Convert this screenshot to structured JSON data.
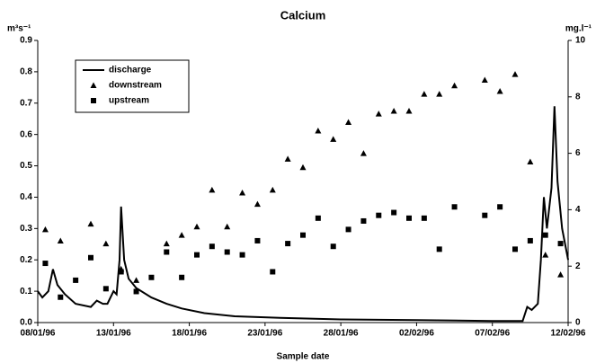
{
  "chart_data": {
    "type": "line_scatter",
    "title": "Calcium",
    "ylabel": "m³s⁻¹",
    "y2label": "mg.l⁻¹",
    "xlabel": "Sample date",
    "xlim": [
      0,
      35
    ],
    "xticks": [
      {
        "value": 0,
        "label": "08/01/96"
      },
      {
        "value": 5,
        "label": "13/01/96"
      },
      {
        "value": 10,
        "label": "18/01/96"
      },
      {
        "value": 15,
        "label": "23/01/96"
      },
      {
        "value": 20,
        "label": "28/01/96"
      },
      {
        "value": 25,
        "label": "02/02/96"
      },
      {
        "value": 30,
        "label": "07/02/96"
      },
      {
        "value": 35,
        "label": "12/02/96"
      }
    ],
    "ylim": [
      0,
      0.9
    ],
    "yticks": [
      {
        "value": 0,
        "label": "0.0"
      },
      0.1,
      0.2,
      0.3,
      0.4,
      0.5,
      0.6,
      0.7,
      0.8,
      0.9
    ],
    "y2lim": [
      0,
      10
    ],
    "y2ticks": [
      0,
      2,
      4,
      6,
      8,
      10
    ],
    "series": [
      {
        "name": "discharge",
        "color": "#000000",
        "marker": "line",
        "x": [
          0,
          0.3,
          0.7,
          1,
          1.3,
          1.8,
          2.5,
          3.5,
          3.9,
          4.3,
          4.6,
          5,
          5.2,
          5.4,
          5.5,
          5.7,
          6,
          6.5,
          7.5,
          8.5,
          9.5,
          11,
          13,
          16,
          20,
          25,
          30,
          32,
          32.3,
          32.6,
          33,
          33.2,
          33.4,
          33.6,
          33.9,
          34.1,
          34.3,
          34.6,
          35
        ],
        "values": [
          0.1,
          0.08,
          0.1,
          0.17,
          0.12,
          0.09,
          0.06,
          0.05,
          0.07,
          0.06,
          0.06,
          0.1,
          0.09,
          0.2,
          0.37,
          0.2,
          0.14,
          0.11,
          0.08,
          0.06,
          0.045,
          0.03,
          0.02,
          0.015,
          0.01,
          0.008,
          0.005,
          0.005,
          0.05,
          0.04,
          0.06,
          0.2,
          0.4,
          0.3,
          0.43,
          0.69,
          0.45,
          0.3,
          0.2
        ]
      },
      {
        "name": "downstream",
        "color": "#000000",
        "marker": "triangle",
        "axis": "y2",
        "x": [
          0.5,
          1.5,
          3.5,
          4.5,
          5.5,
          6.5,
          8.5,
          9.5,
          10.5,
          11.5,
          12.5,
          13.5,
          14.5,
          15.5,
          16.5,
          17.5,
          18.5,
          19.5,
          20.5,
          21.5,
          22.5,
          23.5,
          24.5,
          25.5,
          26.5,
          27.5,
          29.5,
          30.5,
          31.5,
          32.5,
          33.5,
          34.5
        ],
        "values": [
          3.3,
          2.9,
          3.5,
          2.8,
          1.9,
          1.5,
          2.8,
          3.1,
          3.4,
          4.7,
          3.4,
          4.6,
          4.2,
          4.7,
          5.8,
          5.5,
          6.8,
          6.5,
          7.1,
          6.0,
          7.4,
          7.5,
          7.5,
          8.1,
          8.1,
          8.4,
          8.6,
          8.2,
          8.8,
          5.7,
          2.4,
          1.7
        ]
      },
      {
        "name": "upstream",
        "color": "#000000",
        "marker": "square",
        "axis": "y2",
        "x": [
          0.5,
          1.5,
          2.5,
          3.5,
          4.5,
          5.5,
          6.5,
          7.5,
          8.5,
          9.5,
          10.5,
          11.5,
          12.5,
          13.5,
          14.5,
          15.5,
          16.5,
          17.5,
          18.5,
          19.5,
          20.5,
          21.5,
          22.5,
          23.5,
          24.5,
          25.5,
          26.5,
          27.5,
          29.5,
          30.5,
          31.5,
          32.5,
          33.5,
          34.5
        ],
        "values": [
          2.1,
          0.9,
          1.5,
          2.3,
          1.2,
          1.8,
          1.1,
          1.6,
          2.5,
          1.6,
          2.4,
          2.7,
          2.5,
          2.4,
          2.9,
          1.8,
          2.8,
          3.1,
          3.7,
          2.7,
          3.3,
          3.6,
          3.8,
          3.9,
          3.7,
          3.7,
          2.6,
          4.1,
          3.8,
          4.1,
          2.6,
          2.9,
          3.1,
          2.8
        ]
      }
    ]
  }
}
